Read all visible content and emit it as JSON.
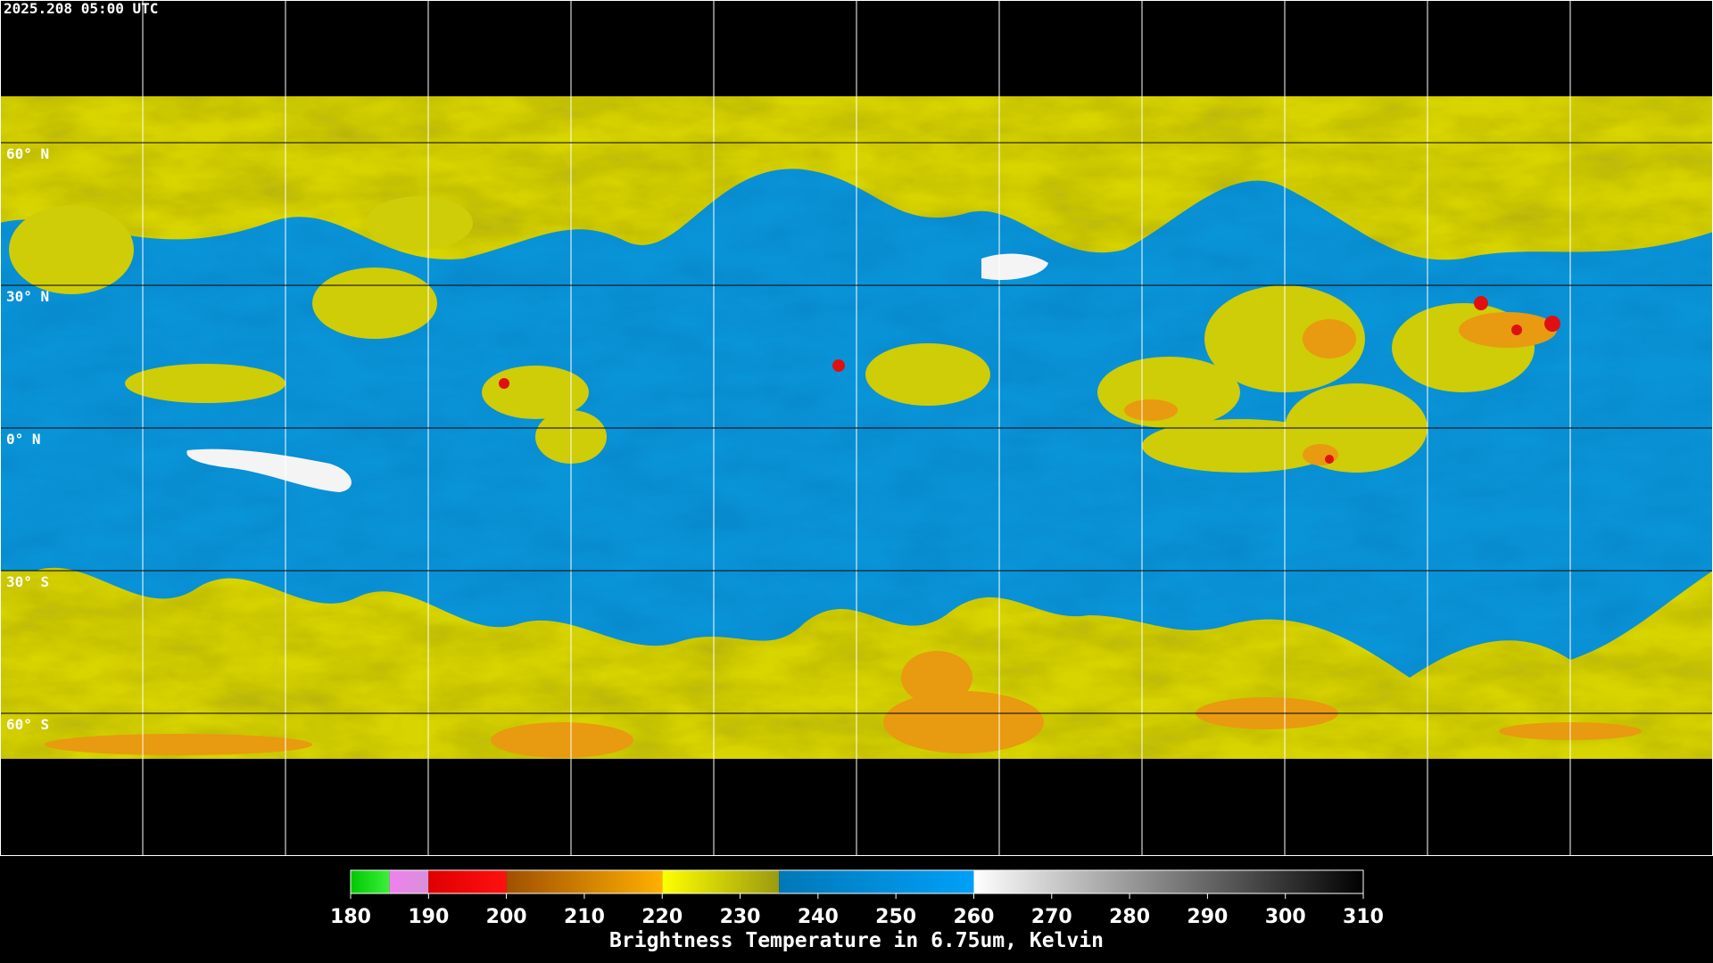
{
  "timestamp": "2025.208 05:00 UTC",
  "latitudes": [
    {
      "value": 60,
      "label": "60° N"
    },
    {
      "value": 30,
      "label": "30° N"
    },
    {
      "value": 0,
      "label": "0° N"
    },
    {
      "value": -30,
      "label": "30° S"
    },
    {
      "value": -60,
      "label": "60° S"
    }
  ],
  "colorbar": {
    "title": "Brightness Temperature in 6.75um, Kelvin",
    "range": [
      180,
      310
    ],
    "ticks": [
      180,
      190,
      200,
      210,
      220,
      230,
      240,
      250,
      260,
      270,
      280,
      290,
      300,
      310
    ],
    "segments": [
      {
        "from": 180,
        "to": 185,
        "colors": [
          "#00c800",
          "#3cf03c"
        ]
      },
      {
        "from": 185,
        "to": 190,
        "colors": [
          "#f080f0",
          "#d890d8"
        ]
      },
      {
        "from": 190,
        "to": 200,
        "colors": [
          "#e00000",
          "#ff1010"
        ]
      },
      {
        "from": 200,
        "to": 220,
        "colors": [
          "#a05000",
          "#ffb000"
        ]
      },
      {
        "from": 220,
        "to": 235,
        "colors": [
          "#ffff00",
          "#9a9a10"
        ]
      },
      {
        "from": 235,
        "to": 260,
        "colors": [
          "#0078b8",
          "#00a0f8"
        ]
      },
      {
        "from": 260,
        "to": 310,
        "colors": [
          "#ffffff",
          "#000000"
        ]
      }
    ]
  }
}
